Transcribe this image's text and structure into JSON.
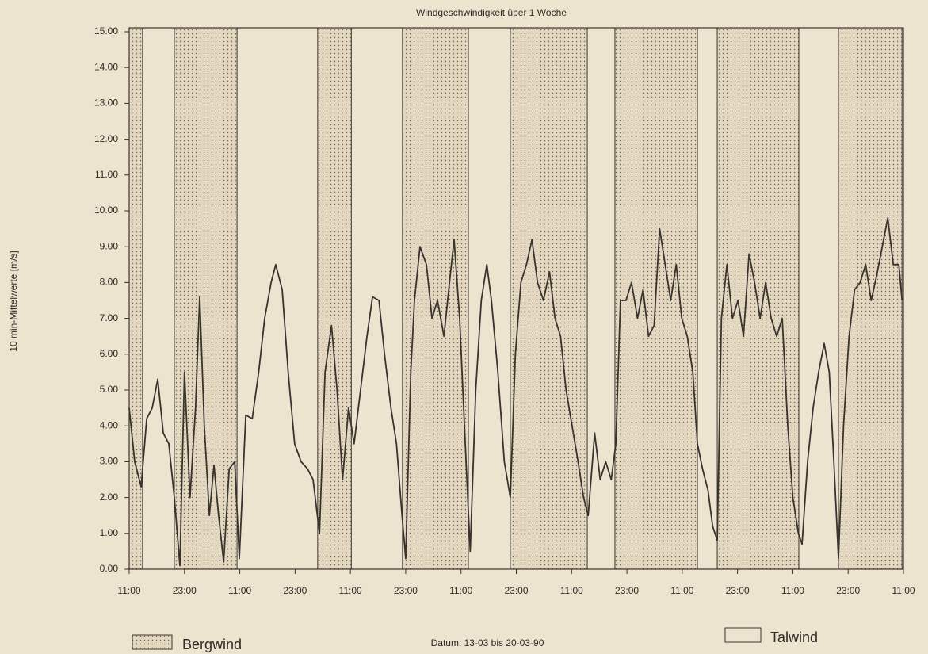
{
  "chart_data": {
    "type": "line",
    "title": "Windgeschwindigkeit über 1 Woche",
    "ylabel": "10 min-Mittelwerte [m/s]",
    "footer": "Datum: 13-03 bis 20-03-90",
    "color": "#38332e",
    "xlim": [
      0,
      168
    ],
    "ylim": [
      0,
      15
    ],
    "xticks": [
      {
        "value": 0,
        "label": "11:00"
      },
      {
        "value": 12,
        "label": "23:00"
      },
      {
        "value": 24,
        "label": "11:00"
      },
      {
        "value": 36,
        "label": "23:00"
      },
      {
        "value": 48,
        "label": "11:00"
      },
      {
        "value": 60,
        "label": "23:00"
      },
      {
        "value": 72,
        "label": "11:00"
      },
      {
        "value": 84,
        "label": "23:00"
      },
      {
        "value": 96,
        "label": "11:00"
      },
      {
        "value": 108,
        "label": "23:00"
      },
      {
        "value": 120,
        "label": "11:00"
      },
      {
        "value": 132,
        "label": "23:00"
      },
      {
        "value": 144,
        "label": "11:00"
      },
      {
        "value": 156,
        "label": "23:00"
      },
      {
        "value": 168,
        "label": "11:00"
      }
    ],
    "yticks": [
      {
        "value": 0,
        "label": "0.00"
      },
      {
        "value": 1,
        "label": "1.00"
      },
      {
        "value": 2,
        "label": "2.00"
      },
      {
        "value": 3,
        "label": "3.00"
      },
      {
        "value": 4,
        "label": "4.00"
      },
      {
        "value": 5,
        "label": "5.00"
      },
      {
        "value": 6,
        "label": "6.00"
      },
      {
        "value": 7,
        "label": "7.00"
      },
      {
        "value": 8,
        "label": "8.00"
      },
      {
        "value": 9,
        "label": "9.00"
      },
      {
        "value": 10,
        "label": "10.00"
      },
      {
        "value": 11,
        "label": "11.00"
      },
      {
        "value": 12,
        "label": "12.00"
      },
      {
        "value": 13,
        "label": "13.00"
      },
      {
        "value": 14,
        "label": "14.00"
      },
      {
        "value": 15,
        "label": "15.00"
      }
    ],
    "regions": [
      {
        "name": "Bergwind",
        "fill": "dots",
        "periods": [
          [
            0,
            2.9
          ],
          [
            9.8,
            23.4
          ],
          [
            40.9,
            48.2
          ],
          [
            59.3,
            73.6
          ],
          [
            82.7,
            99.4
          ],
          [
            105.4,
            123.3
          ],
          [
            127.6,
            145.3
          ],
          [
            153.9,
            167.7
          ]
        ]
      },
      {
        "name": "Talwind",
        "fill": "none"
      }
    ],
    "x": [
      0,
      1.2,
      2.6,
      3.8,
      5.0,
      6.2,
      7.4,
      8.6,
      9.8,
      11.0,
      12.0,
      13.2,
      14.4,
      15.3,
      16.3,
      17.4,
      18.4,
      19.4,
      20.5,
      21.7,
      22.9,
      23.9,
      25.3,
      26.7,
      28.1,
      29.4,
      30.8,
      31.8,
      33.2,
      34.5,
      35.9,
      37.3,
      38.7,
      39.9,
      41.3,
      42.5,
      43.9,
      45.1,
      46.3,
      47.6,
      48.8,
      50.2,
      51.6,
      52.8,
      54.2,
      55.4,
      56.8,
      58.0,
      59.2,
      60.0,
      61.1,
      61.9,
      63.1,
      64.5,
      65.7,
      66.9,
      68.3,
      69.5,
      70.5,
      71.7,
      73.1,
      74.0,
      75.2,
      76.4,
      77.6,
      78.6,
      80.0,
      81.4,
      82.7,
      83.8,
      85.0,
      86.2,
      87.4,
      88.6,
      89.9,
      91.2,
      92.4,
      93.6,
      94.8,
      96.1,
      97.4,
      98.6,
      99.6,
      101.0,
      102.2,
      103.4,
      104.6,
      105.6,
      106.6,
      107.8,
      109.0,
      110.3,
      111.5,
      112.7,
      113.9,
      115.1,
      116.3,
      117.5,
      118.7,
      119.9,
      121.1,
      122.3,
      123.3,
      124.4,
      125.6,
      126.6,
      127.6,
      128.5,
      129.7,
      130.9,
      132.1,
      133.3,
      134.5,
      135.7,
      136.9,
      138.1,
      139.3,
      140.5,
      141.7,
      142.9,
      144.0,
      145.2,
      146.0,
      147.2,
      148.4,
      149.6,
      150.8,
      151.9,
      152.9,
      153.9,
      155.0,
      156.2,
      157.4,
      158.6,
      159.8,
      161.0,
      162.2,
      163.4,
      164.6,
      165.8,
      167.0,
      167.7
    ],
    "values": [
      4.5,
      3.0,
      2.3,
      4.2,
      4.5,
      5.3,
      3.8,
      3.5,
      2.0,
      0.1,
      5.5,
      2.0,
      4.5,
      7.6,
      4.0,
      1.5,
      2.9,
      1.5,
      0.2,
      2.8,
      3.0,
      0.3,
      4.3,
      4.2,
      5.5,
      7.0,
      8.0,
      8.5,
      7.8,
      5.5,
      3.5,
      3.0,
      2.8,
      2.5,
      1.0,
      5.5,
      6.8,
      5.0,
      2.5,
      4.5,
      3.5,
      5.0,
      6.5,
      7.6,
      7.5,
      6.0,
      4.5,
      3.5,
      1.5,
      0.3,
      5.5,
      7.5,
      9.0,
      8.5,
      7.0,
      7.5,
      6.5,
      8.0,
      9.2,
      7.0,
      3.0,
      0.5,
      5.0,
      7.5,
      8.5,
      7.5,
      5.5,
      3.0,
      2.0,
      6.0,
      8.0,
      8.5,
      9.2,
      8.0,
      7.5,
      8.3,
      7.0,
      6.5,
      5.0,
      4.0,
      3.0,
      2.0,
      1.5,
      3.8,
      2.5,
      3.0,
      2.5,
      3.5,
      7.5,
      7.5,
      8.0,
      7.0,
      7.8,
      6.5,
      6.8,
      9.5,
      8.5,
      7.5,
      8.5,
      7.0,
      6.5,
      5.5,
      3.5,
      2.8,
      2.2,
      1.2,
      0.8,
      7.0,
      8.5,
      7.0,
      7.5,
      6.5,
      8.8,
      8.0,
      7.0,
      8.0,
      7.0,
      6.5,
      7.0,
      4.0,
      2.0,
      1.0,
      0.7,
      3.0,
      4.5,
      5.5,
      6.3,
      5.5,
      3.0,
      0.3,
      4.0,
      6.5,
      7.8,
      8.0,
      8.5,
      7.5,
      8.2,
      9.0,
      9.8,
      8.5,
      8.5,
      7.5
    ]
  }
}
